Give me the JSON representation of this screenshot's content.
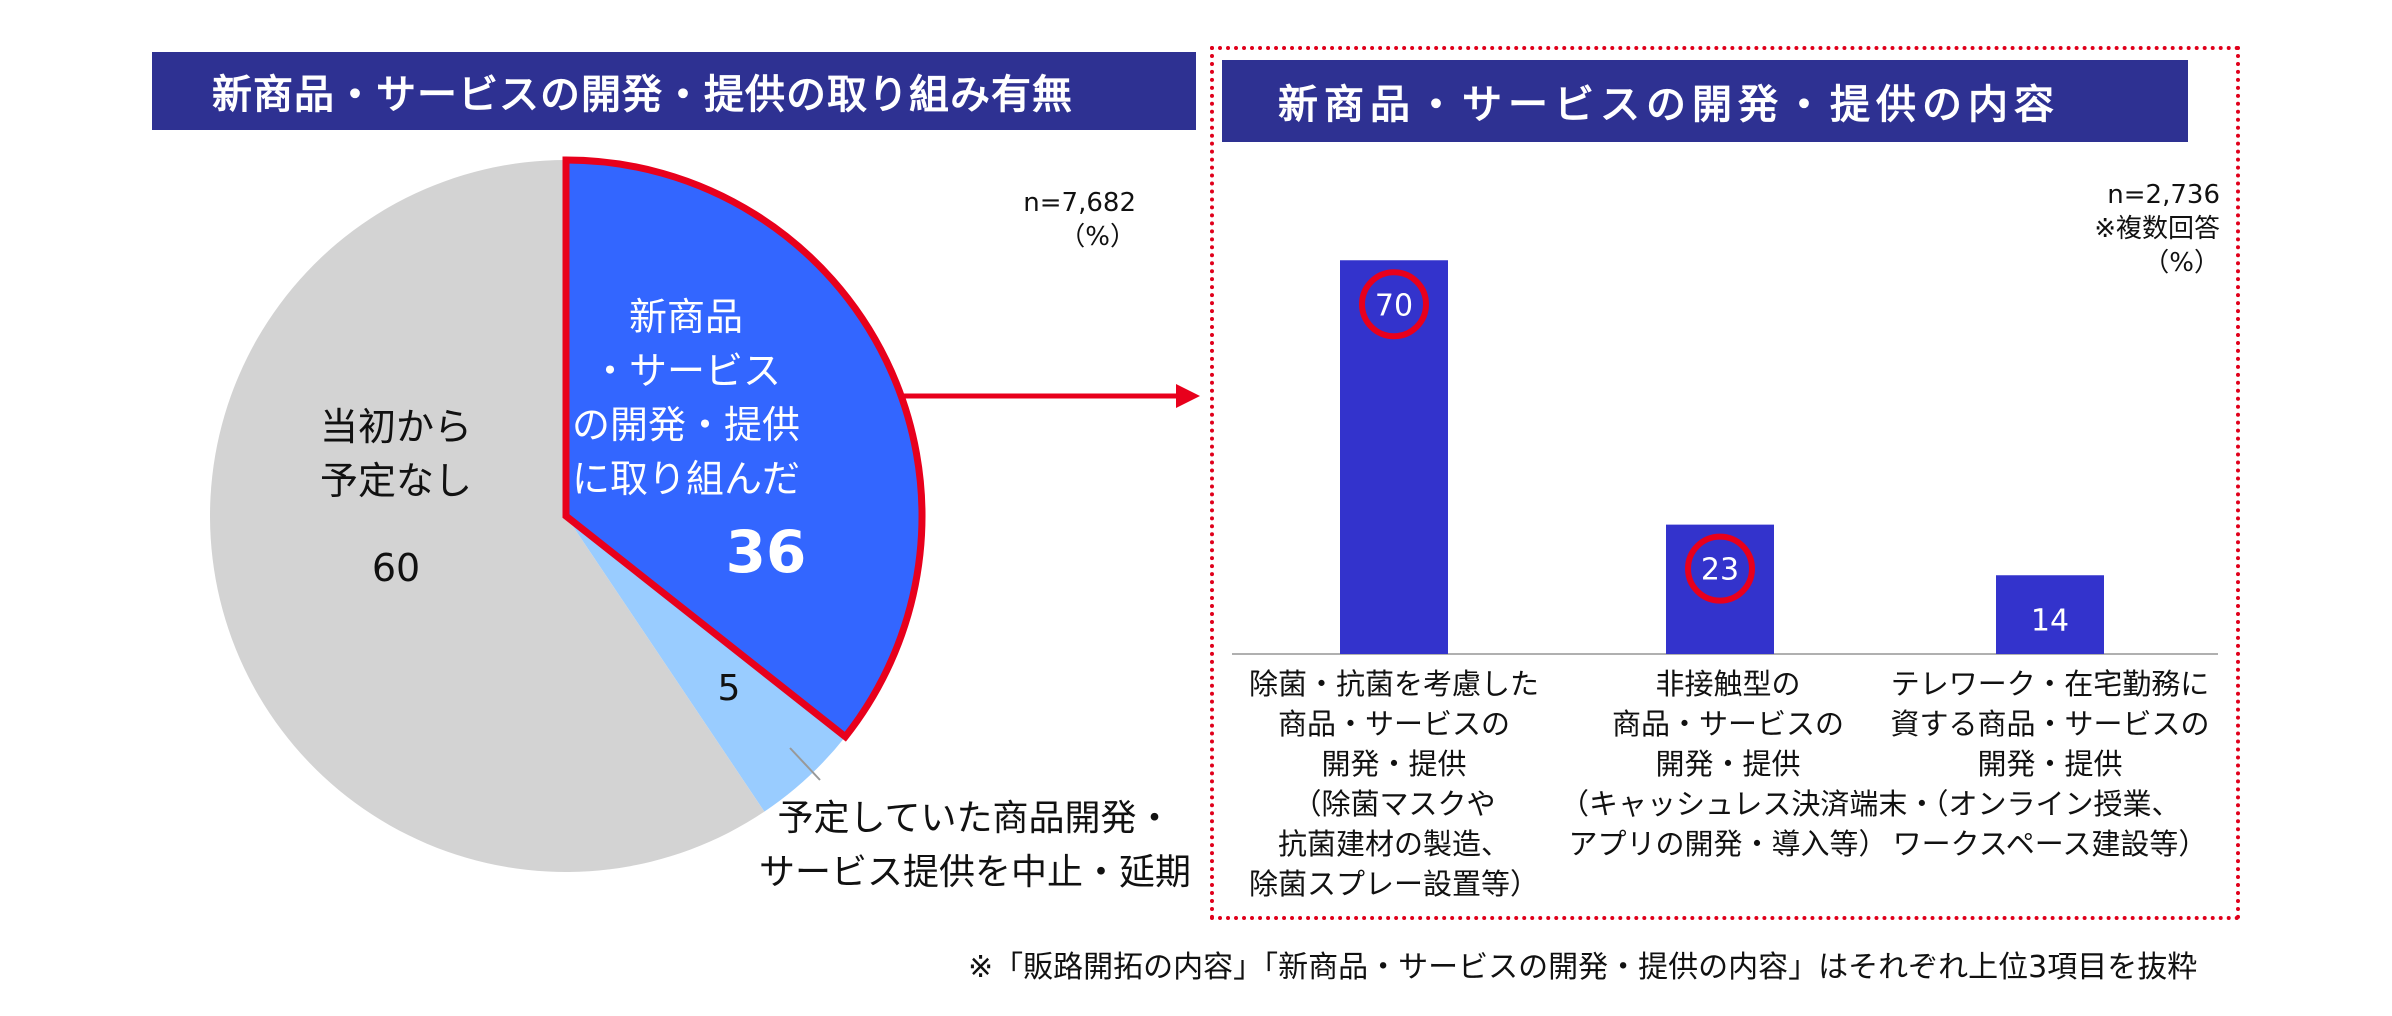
{
  "left_panel": {
    "title": "新商品・サービスの開発・提供の取り組み有無",
    "note": "n=7,682\n（%）"
  },
  "right_panel": {
    "title": "新商品・サービスの開発・提供の内容",
    "note": "n=2,736\n※複数回答\n（%）"
  },
  "footnote": "※「販路開拓の内容」「新商品・サービスの開発・提供の内容」はそれぞれ上位3項目を抜粋",
  "chart_data": [
    {
      "type": "pie",
      "slices": [
        {
          "label": "新商品\n・サービス\nの開発・提供\nに取り組んだ",
          "value": 36,
          "color": "#3366ff",
          "highlight": true
        },
        {
          "label": "予定していた商品開発・\nサービス提供を中止・延期",
          "value": 5,
          "color": "#99ccff"
        },
        {
          "label": "当初から\n予定なし",
          "value": 60,
          "color": "#d3d3d3"
        }
      ],
      "highlight_color": "#e8001c"
    },
    {
      "type": "bar",
      "categories": [
        "除菌・抗菌を考慮した\n商品・サービスの\n開発・提供\n（除菌マスクや\n抗菌建材の製造、\n除菌スプレー設置等）",
        "非接触型の\n商品・サービスの\n開発・提供\n（キャッシュレス決済端末・\nアプリの開発・導入等）",
        "テレワーク・在宅勤務に\n資する商品・サービスの\n開発・提供\n（オンライン授業、\nワークスペース建設等）"
      ],
      "values": [
        70,
        23,
        14
      ],
      "circled": [
        true,
        true,
        false
      ],
      "bar_color": "#3333cc",
      "circle_color": "#e8001c",
      "ylim": [
        0,
        80
      ]
    }
  ]
}
